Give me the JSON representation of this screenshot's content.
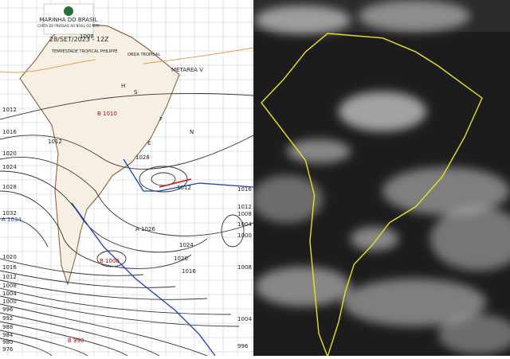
{
  "header": {
    "org": "MARINHA DO BRASIL",
    "title": "CARTA DE PRESSÃO AO NÍVEL DO MAR",
    "date": "28/SET/2023 - 12Z"
  },
  "systems": {
    "storm": "TEMPESTADE TROPICAL PHILIPPE",
    "wave": "ONDA TROPICAL",
    "metarea": "METAREA V",
    "low": "B 1010",
    "high": "A 1026",
    "high2": "A 1034",
    "low2": "B 1006",
    "low3": "B 990"
  },
  "areas": [
    "H",
    "S",
    "N",
    "E",
    "F"
  ],
  "isobars_left": [
    1012,
    1016,
    1020,
    1024,
    1028,
    1032,
    1020,
    1016,
    1012,
    1008,
    1004,
    1000,
    996,
    992,
    988,
    984,
    980,
    976
  ],
  "isobars_right": [
    1016,
    1012,
    1008,
    1004,
    1000,
    1008,
    1004,
    996
  ],
  "isobars_inner": [
    1008,
    1012,
    1024,
    1020,
    1016,
    1012,
    1028
  ]
}
